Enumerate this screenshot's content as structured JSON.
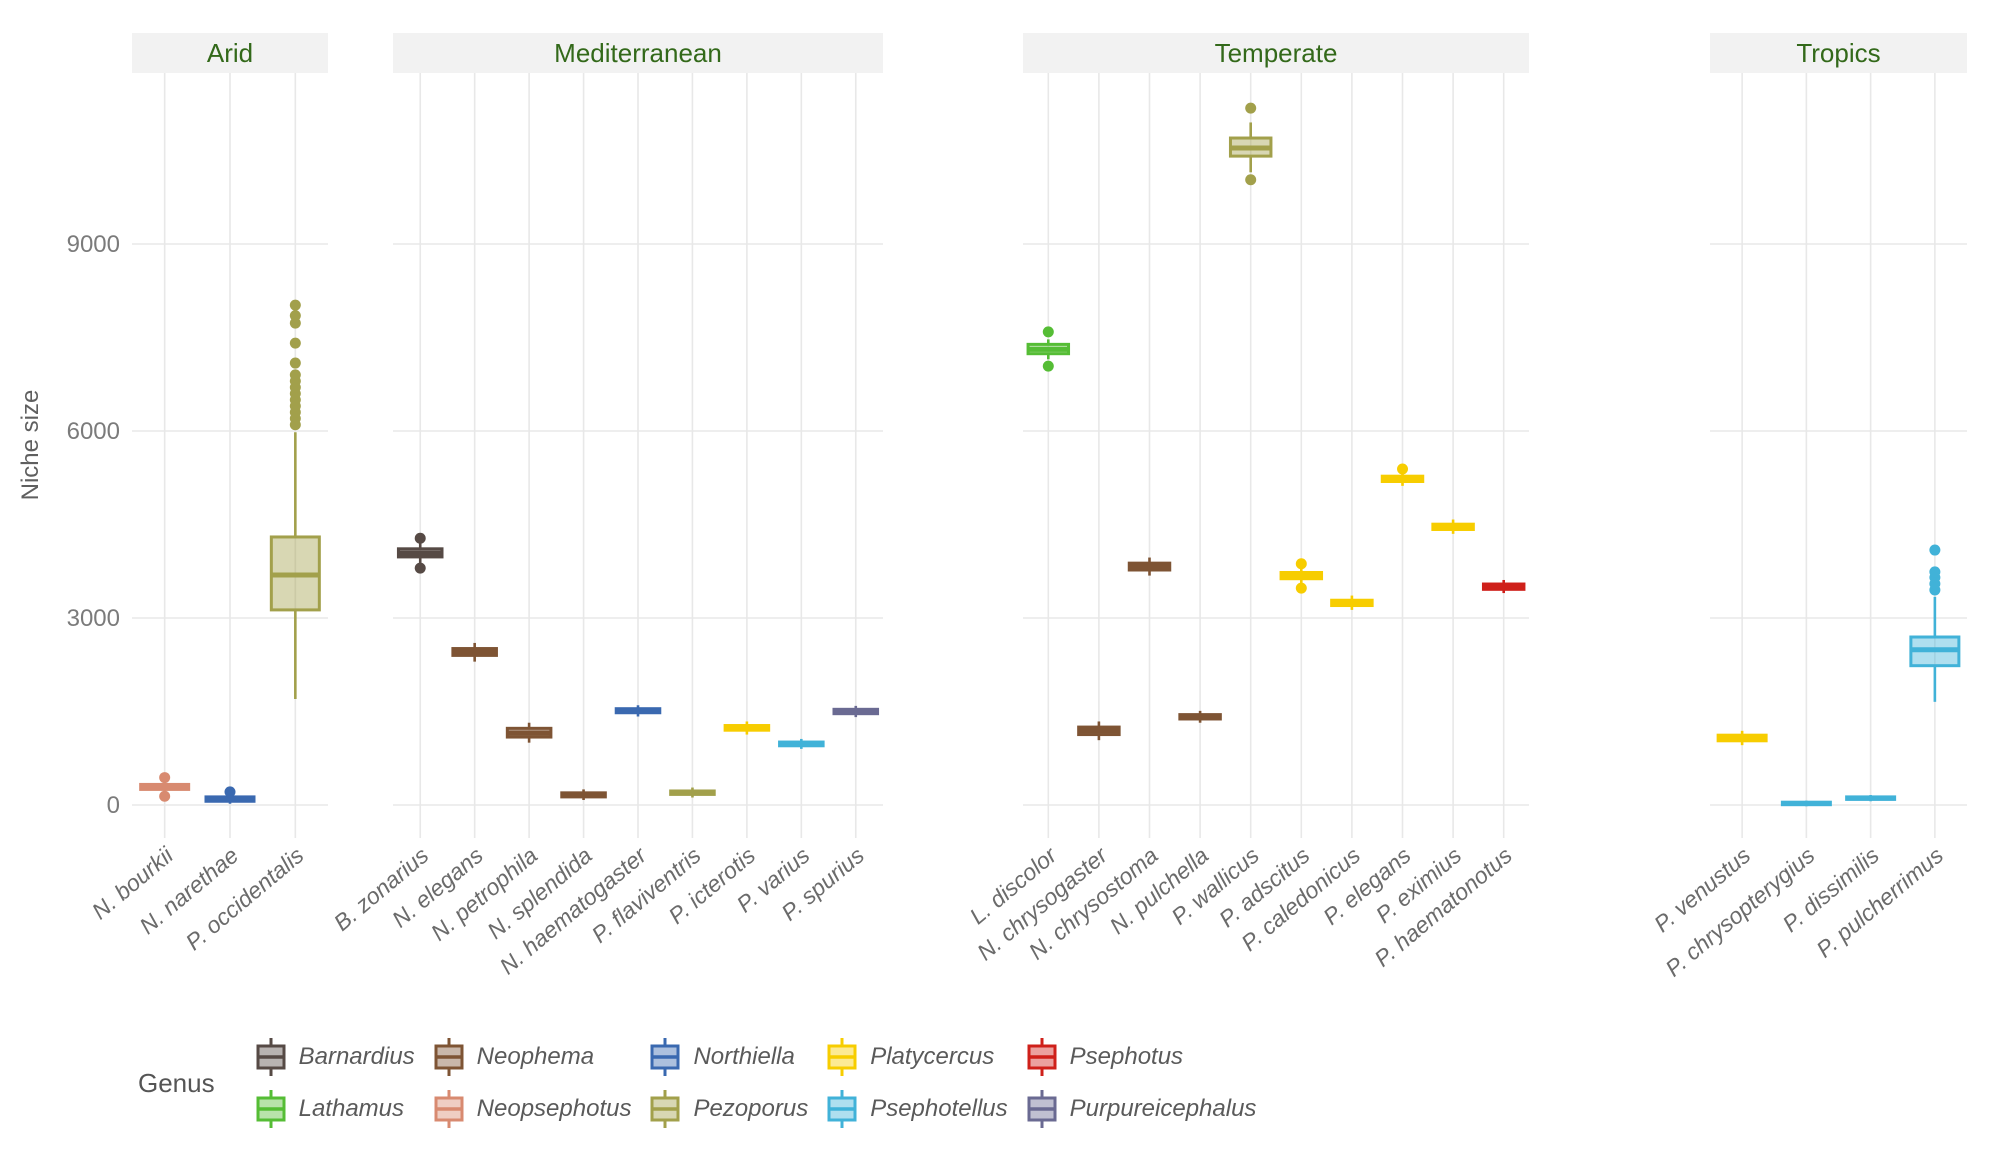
{
  "y_axis": {
    "label": "Niche size",
    "ticks": [
      "0",
      "3000",
      "6000",
      "9000"
    ],
    "tick_values": [
      0,
      3000,
      6000,
      9000
    ]
  },
  "legend": {
    "title": "Genus",
    "items": [
      {
        "label": "Barnardius",
        "genus": "barnardius"
      },
      {
        "label": "Lathamus",
        "genus": "lathamus"
      },
      {
        "label": "Neophema",
        "genus": "neophema"
      },
      {
        "label": "Neopsephotus",
        "genus": "neopsephotus"
      },
      {
        "label": "Northiella",
        "genus": "northiella"
      },
      {
        "label": "Pezoporus",
        "genus": "pezoporus"
      },
      {
        "label": "Platycercus",
        "genus": "platycercus"
      },
      {
        "label": "Psephotellus",
        "genus": "psephotellus"
      },
      {
        "label": "Psephotus",
        "genus": "psephotus"
      },
      {
        "label": "Purpureicephalus",
        "genus": "purpureicephalus"
      }
    ]
  },
  "genus_colors": {
    "barnardius": "#564a45",
    "lathamus": "#55bd35",
    "neophema": "#7e5434",
    "neopsephotus": "#d88a70",
    "northiella": "#3a69b0",
    "pezoporus": "#a2a04b",
    "platycercus": "#f7cd00",
    "psephotellus": "#41b2d8",
    "psephotus": "#cf201a",
    "purpureicephalus": "#6a6a92"
  },
  "style": {
    "strip_bg": "#f2f2f2",
    "strip_text": "#33691a",
    "grid": "#e8e8e8",
    "fill_alpha": 0.42
  },
  "chart_data": {
    "type": "boxplot",
    "ylabel": "Niche size",
    "ylim": [
      0,
      11750
    ],
    "grid": true,
    "legend_position": "bottom",
    "facets": [
      {
        "label": "Arid",
        "species": [
          {
            "label": "N. bourkii",
            "genus": "neopsephotus",
            "stats": {
              "lo": 170,
              "q1": 250,
              "med": 290,
              "q3": 330,
              "hi": 400,
              "out": [
                440,
                140
              ]
            }
          },
          {
            "label": "N. narethae",
            "genus": "northiella",
            "stats": {
              "lo": 20,
              "q1": 60,
              "med": 95,
              "q3": 130,
              "hi": 170,
              "out": [
                210
              ]
            }
          },
          {
            "label": "P. occidentalis",
            "genus": "pezoporus",
            "stats": {
              "lo": 1700,
              "q1": 3130,
              "med": 3690,
              "q3": 4300,
              "hi": 5980,
              "out": [
                6100,
                6200,
                6300,
                6400,
                6500,
                6600,
                6700,
                6800,
                6900,
                7090,
                7410,
                7730,
                7850,
                8020
              ]
            }
          }
        ]
      },
      {
        "label": "Mediterranean",
        "species": [
          {
            "label": "B. zonarius",
            "genus": "barnardius",
            "stats": {
              "lo": 3830,
              "q1": 3980,
              "med": 4040,
              "q3": 4110,
              "hi": 4250,
              "out": [
                4280,
                3800
              ]
            }
          },
          {
            "label": "N. elegans",
            "genus": "neophema",
            "stats": {
              "lo": 2300,
              "q1": 2400,
              "med": 2455,
              "q3": 2510,
              "hi": 2600,
              "out": []
            }
          },
          {
            "label": "N. petrophila",
            "genus": "neophema",
            "stats": {
              "lo": 1000,
              "q1": 1090,
              "med": 1155,
              "q3": 1230,
              "hi": 1320,
              "out": []
            }
          },
          {
            "label": "N. splendida",
            "genus": "neophema",
            "stats": {
              "lo": 80,
              "q1": 130,
              "med": 160,
              "q3": 195,
              "hi": 250,
              "out": []
            }
          },
          {
            "label": "N. haematogaster",
            "genus": "northiella",
            "stats": {
              "lo": 1420,
              "q1": 1480,
              "med": 1510,
              "q3": 1545,
              "hi": 1600,
              "out": []
            }
          },
          {
            "label": "P. flaviventris",
            "genus": "pezoporus",
            "stats": {
              "lo": 120,
              "q1": 170,
              "med": 195,
              "q3": 225,
              "hi": 280,
              "out": []
            }
          },
          {
            "label": "P. icterotis",
            "genus": "platycercus",
            "stats": {
              "lo": 1130,
              "q1": 1200,
              "med": 1235,
              "q3": 1275,
              "hi": 1340,
              "out": []
            }
          },
          {
            "label": "P. varius",
            "genus": "psephotellus",
            "stats": {
              "lo": 900,
              "q1": 950,
              "med": 980,
              "q3": 1010,
              "hi": 1060,
              "out": []
            }
          },
          {
            "label": "P. spurius",
            "genus": "purpureicephalus",
            "stats": {
              "lo": 1410,
              "q1": 1465,
              "med": 1500,
              "q3": 1535,
              "hi": 1590,
              "out": []
            }
          }
        ]
      },
      {
        "label": "Temperate",
        "species": [
          {
            "label": "L. discolor",
            "genus": "lathamus",
            "stats": {
              "lo": 7150,
              "q1": 7240,
              "med": 7310,
              "q3": 7390,
              "hi": 7470,
              "out": [
                7590,
                7040
              ]
            }
          },
          {
            "label": "N. chrysogaster",
            "genus": "neophema",
            "stats": {
              "lo": 1040,
              "q1": 1130,
              "med": 1190,
              "q3": 1250,
              "hi": 1340,
              "out": []
            }
          },
          {
            "label": "N. chrysostoma",
            "genus": "neophema",
            "stats": {
              "lo": 3680,
              "q1": 3770,
              "med": 3820,
              "q3": 3880,
              "hi": 3970,
              "out": []
            }
          },
          {
            "label": "N. pulchella",
            "genus": "neophema",
            "stats": {
              "lo": 1320,
              "q1": 1380,
              "med": 1415,
              "q3": 1450,
              "hi": 1510,
              "out": []
            }
          },
          {
            "label": "P. wallicus",
            "genus": "pezoporus",
            "stats": {
              "lo": 10150,
              "q1": 10410,
              "med": 10540,
              "q3": 10700,
              "hi": 10950,
              "out": [
                11180,
                10030
              ]
            }
          },
          {
            "label": "P. adscitus",
            "genus": "platycercus",
            "stats": {
              "lo": 3520,
              "q1": 3630,
              "med": 3680,
              "q3": 3730,
              "hi": 3830,
              "out": [
                3870,
                3480
              ]
            }
          },
          {
            "label": "P. caledonicus",
            "genus": "platycercus",
            "stats": {
              "lo": 3130,
              "q1": 3200,
              "med": 3240,
              "q3": 3285,
              "hi": 3360,
              "out": []
            }
          },
          {
            "label": "P. elegans",
            "genus": "platycercus",
            "stats": {
              "lo": 5120,
              "q1": 5190,
              "med": 5230,
              "q3": 5275,
              "hi": 5350,
              "out": [
                5390
              ]
            }
          },
          {
            "label": "P. eximius",
            "genus": "platycercus",
            "stats": {
              "lo": 4350,
              "q1": 4420,
              "med": 4460,
              "q3": 4505,
              "hi": 4580,
              "out": []
            }
          },
          {
            "label": "P. haematonotus",
            "genus": "psephotus",
            "stats": {
              "lo": 3400,
              "q1": 3460,
              "med": 3500,
              "q3": 3545,
              "hi": 3610,
              "out": []
            }
          }
        ]
      },
      {
        "label": "Tropics",
        "species": [
          {
            "label": "P. venustus",
            "genus": "platycercus",
            "stats": {
              "lo": 960,
              "q1": 1030,
              "med": 1075,
              "q3": 1120,
              "hi": 1190,
              "out": []
            }
          },
          {
            "label": "P. chrysopterygius",
            "genus": "psephotellus",
            "stats": {
              "lo": -20,
              "q1": 5,
              "med": 25,
              "q3": 45,
              "hi": 70,
              "out": []
            }
          },
          {
            "label": "P. dissimilis",
            "genus": "psephotellus",
            "stats": {
              "lo": 60,
              "q1": 90,
              "med": 110,
              "q3": 130,
              "hi": 160,
              "out": []
            }
          },
          {
            "label": "P. pulcherrimus",
            "genus": "psephotellus",
            "stats": {
              "lo": 1655,
              "q1": 2235,
              "med": 2490,
              "q3": 2695,
              "hi": 3340,
              "out": [
                3450,
                3550,
                3650,
                3740,
                4090
              ]
            }
          }
        ]
      }
    ]
  }
}
